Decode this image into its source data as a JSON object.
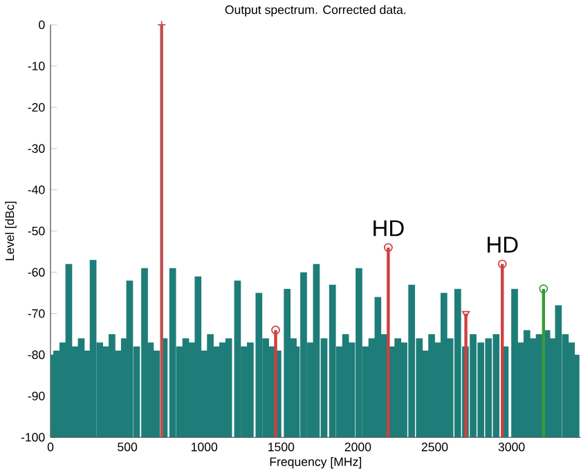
{
  "chart_data": {
    "type": "bar",
    "title": "Output spectrum. Corrected data.",
    "xlabel": "Frequency [MHz]",
    "ylabel": "Level [dBc]",
    "xlim": [
      0,
      3450
    ],
    "ylim": [
      -100,
      0
    ],
    "xticks": [
      0,
      500,
      1000,
      1500,
      2000,
      2500,
      3000
    ],
    "yticks": [
      -100,
      -90,
      -80,
      -70,
      -60,
      -50,
      -40,
      -30,
      -20,
      -10,
      0
    ],
    "series": [
      {
        "color": "#1e7d78",
        "x": [
          0,
          40,
          80,
          119,
          160,
          200,
          240,
          277,
          320,
          360,
          400,
          440,
          480,
          515,
          560,
          612,
          650,
          690,
          740,
          795,
          840,
          880,
          920,
          960,
          1000,
          1040,
          1080,
          1120,
          1160,
          1217,
          1260,
          1300,
          1356,
          1400,
          1440,
          1480,
          1540,
          1580,
          1600,
          1647,
          1690,
          1730,
          1780,
          1835,
          1880,
          1920,
          1960,
          2007,
          2050,
          2090,
          2130,
          2170,
          2220,
          2260,
          2300,
          2350,
          2400,
          2440,
          2480,
          2520,
          2560,
          2600,
          2650,
          2700,
          2750,
          2800,
          2850,
          2900,
          2960,
          3020,
          3060,
          3100,
          3140,
          3180,
          3230,
          3270,
          3305,
          3350,
          3390,
          3420
        ],
        "base": [
          -100,
          -100,
          -100,
          -100,
          -100,
          -100,
          -100,
          -100,
          -100,
          -100,
          -100,
          -100,
          -100,
          -100,
          -100,
          -100,
          -100,
          -100,
          -100,
          -100,
          -100,
          -100,
          -100,
          -100,
          -100,
          -100,
          -100,
          -100,
          -100,
          -100,
          -100,
          -100,
          -100,
          -100,
          -100,
          -100,
          -100,
          -100,
          -100,
          -100,
          -100,
          -100,
          -100,
          -100,
          -100,
          -100,
          -100,
          -100,
          -100,
          -100,
          -100,
          -100,
          -100,
          -100,
          -100,
          -100,
          -100,
          -100,
          -100,
          -100,
          -100,
          -100,
          -100,
          -100,
          -100,
          -100,
          -100,
          -100,
          -100,
          -100,
          -100,
          -100,
          -100,
          -100,
          -100,
          -100,
          -100,
          -100,
          -100,
          -100
        ],
        "values": [
          20,
          21,
          23,
          42,
          22,
          24,
          21,
          43,
          23,
          22,
          25,
          21,
          24,
          38,
          22,
          41,
          23,
          21,
          24,
          41,
          22,
          24,
          23,
          39,
          21,
          25,
          22,
          23,
          24,
          38,
          22,
          23,
          35,
          24,
          22,
          21,
          36,
          24,
          22,
          40,
          23,
          42,
          24,
          37,
          22,
          25,
          23,
          41,
          22,
          24,
          34,
          25,
          22,
          24,
          23,
          37,
          24,
          21,
          25,
          23,
          35,
          24,
          36,
          22,
          25,
          23,
          24,
          25,
          22,
          36,
          23,
          26,
          24,
          25,
          26,
          24,
          32,
          25,
          23,
          20
        ]
      },
      {
        "color": "#c05050",
        "x": [
          723
        ],
        "base": [
          -100
        ],
        "values": [
          100
        ]
      },
      {
        "color": "#d04040",
        "x": [
          1465,
          2198,
          2703,
          2940
        ],
        "base": [
          -100,
          -100,
          -100,
          -100
        ],
        "values": [
          26,
          46,
          30,
          42
        ]
      },
      {
        "color": "#3a9a3a",
        "x": [
          3208
        ],
        "base": [
          -100
        ],
        "values": [
          36
        ]
      },
      {
        "type": "scatter",
        "color": "#c05050",
        "marker": "cross",
        "x": [
          723
        ],
        "values": [
          0
        ]
      },
      {
        "type": "scatter",
        "color": "#d04040",
        "marker": "circle",
        "x": [
          1465,
          2198,
          2940
        ],
        "values": [
          -74,
          -54,
          -58
        ]
      },
      {
        "type": "scatter",
        "color": "#d04040",
        "marker": "triangle",
        "x": [
          2703
        ],
        "values": [
          -70
        ]
      },
      {
        "type": "scatter",
        "color": "#3a9a3a",
        "marker": "circle",
        "x": [
          3208
        ],
        "values": [
          -64
        ]
      }
    ],
    "annotations": [
      {
        "text": "HD",
        "x": 2198,
        "y": -54
      },
      {
        "text": "HD",
        "x": 2940,
        "y": -58
      }
    ]
  }
}
